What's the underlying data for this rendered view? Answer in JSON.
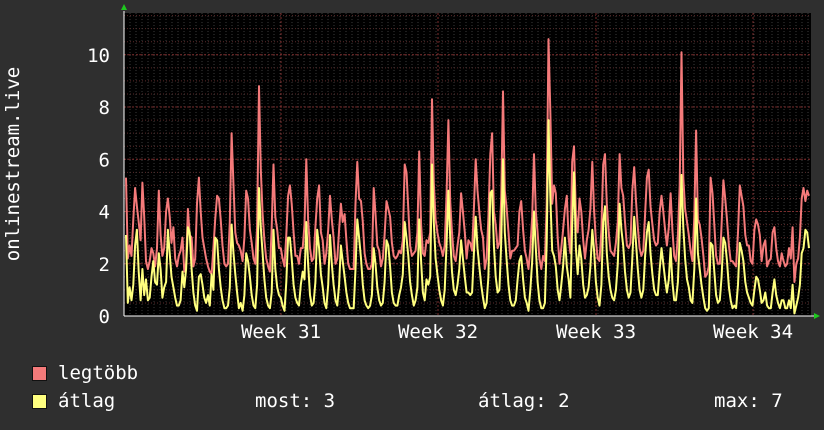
{
  "chart_data": {
    "type": "line",
    "ylabel": "onlinestream.live",
    "ylim": [
      0,
      11.6
    ],
    "y_ticks": [
      "0",
      "2",
      "4",
      "6",
      "8",
      "10"
    ],
    "x_ticks": [
      "Week 31",
      "Week 32",
      "Week 33",
      "Week 34"
    ],
    "grid": true,
    "background_color": "#000000",
    "series": [
      {
        "name": "legtöbb",
        "color": "#f47a7a",
        "values": [
          5.3,
          2.2,
          2.7,
          2.3,
          3.7,
          4.9,
          4.2,
          3.6,
          2.9,
          5.1,
          3.8,
          2.1,
          1.8,
          2.1,
          2.6,
          2.4,
          1.9,
          2.6,
          4.8,
          3.1,
          2.3,
          2.6,
          4.0,
          4.5,
          3.8,
          2.8,
          3.4,
          2.2,
          1.9,
          2.3,
          2.5,
          3.0,
          1.7,
          2.0,
          4.1,
          3.1,
          3.0,
          1.9,
          2.2,
          4.3,
          5.3,
          4.0,
          3.0,
          2.6,
          2.2,
          1.9,
          1.7,
          1.6,
          2.6,
          3.7,
          4.6,
          4.5,
          3.7,
          2.7,
          2.0,
          1.9,
          2.0,
          3.6,
          7.0,
          5.0,
          3.2,
          2.8,
          2.7,
          2.5,
          2.1,
          3.0,
          4.8,
          4.5,
          3.3,
          2.8,
          2.2,
          2.0,
          3.4,
          8.8,
          5.6,
          3.9,
          2.9,
          2.2,
          1.9,
          1.7,
          3.4,
          5.8,
          3.8,
          3.3,
          2.6,
          2.6,
          2.2,
          1.9,
          3.1,
          4.6,
          5.0,
          4.3,
          3.2,
          2.3,
          2.3,
          2.0,
          2.6,
          2.6,
          3.5,
          6.0,
          3.7,
          2.6,
          2.1,
          2.2,
          3.4,
          4.5,
          5.0,
          3.2,
          2.9,
          2.0,
          2.4,
          3.3,
          4.6,
          3.7,
          3.0,
          2.0,
          2.2,
          3.3,
          4.3,
          3.6,
          3.9,
          2.9,
          2.0,
          1.8,
          1.8,
          1.8,
          4.3,
          5.9,
          4.5,
          4.4,
          3.6,
          2.4,
          2.0,
          1.8,
          1.8,
          2.0,
          4.9,
          3.9,
          2.7,
          2.5,
          1.9,
          2.2,
          3.1,
          4.4,
          4.1,
          3.8,
          2.8,
          2.3,
          2.2,
          2.3,
          2.5,
          2.4,
          2.9,
          5.8,
          5.5,
          4.1,
          2.7,
          2.3,
          2.4,
          2.5,
          3.2,
          6.3,
          3.5,
          2.4,
          2.3,
          2.9,
          2.8,
          3.2,
          8.3,
          5.1,
          3.7,
          3.2,
          2.8,
          2.6,
          2.3,
          2.7,
          4.7,
          7.5,
          4.4,
          3.2,
          2.3,
          2.1,
          2.7,
          3.2,
          4.7,
          4.0,
          3.2,
          2.2,
          2.9,
          2.8,
          2.5,
          4.1,
          6.0,
          4.8,
          4.0,
          3.3,
          3.0,
          1.8,
          2.2,
          3.8,
          6.2,
          7.0,
          4.0,
          3.5,
          2.6,
          2.8,
          4.5,
          8.6,
          4.8,
          4.1,
          3.2,
          2.2,
          2.5,
          2.5,
          2.6,
          2.7,
          4.0,
          4.4,
          3.3,
          2.5,
          2.2,
          1.8,
          2.6,
          3.8,
          6.2,
          4.0,
          3.2,
          2.2,
          1.8,
          2.3,
          2.1,
          4.3,
          10.6,
          7.7,
          4.3,
          5.0,
          4.7,
          3.0,
          2.0,
          2.6,
          3.3,
          4.1,
          4.6,
          3.0,
          2.4,
          5.9,
          6.5,
          3.9,
          3.2,
          4.5,
          4.0,
          2.9,
          2.2,
          2.9,
          3.3,
          4.1,
          5.9,
          4.0,
          2.9,
          2.2,
          2.1,
          3.3,
          5.8,
          6.2,
          4.3,
          3.2,
          2.5,
          2.4,
          2.3,
          2.8,
          3.6,
          6.2,
          4.9,
          4.6,
          3.6,
          2.7,
          2.6,
          2.8,
          4.8,
          5.7,
          4.4,
          3.4,
          2.6,
          2.3,
          2.5,
          3.9,
          5.3,
          5.6,
          4.2,
          3.5,
          2.9,
          2.7,
          2.8,
          4.0,
          4.6,
          4.0,
          3.3,
          2.7,
          3.4,
          4.7,
          3.3,
          2.3,
          2.1,
          3.1,
          5.0,
          10.1,
          5.3,
          4.1,
          3.6,
          3.1,
          2.5,
          2.1,
          3.8,
          7.1,
          3.7,
          3.5,
          3.0,
          2.3,
          1.5,
          1.6,
          1.9,
          5.3,
          4.7,
          3.5,
          2.3,
          2.0,
          2.0,
          3.5,
          5.2,
          4.5,
          3.7,
          2.7,
          2.1,
          2.1,
          2.0,
          1.9,
          3.2,
          5.0,
          4.6,
          4.2,
          3.1,
          2.7,
          2.7,
          2.1,
          2.0,
          3.3,
          3.7,
          3.5,
          3.1,
          2.1,
          2.7,
          2.9,
          1.9,
          2.1,
          2.2,
          3.2,
          3.4,
          2.6,
          2.1,
          1.9,
          2.4,
          2.1,
          1.9,
          2.0,
          2.6,
          2.2,
          3.4,
          1.3,
          2.0,
          2.2,
          3.0,
          4.5,
          4.9,
          4.4,
          4.8,
          4.6
        ]
      },
      {
        "name": "átlag",
        "color": "#ffff7f",
        "values": [
          3.1,
          0.5,
          1.1,
          0.6,
          1.2,
          2.7,
          3.3,
          1.7,
          0.6,
          1.8,
          0.8,
          1.4,
          0.6,
          0.7,
          1.5,
          2.1,
          1.3,
          1.2,
          2.4,
          1.8,
          0.7,
          1.1,
          1.3,
          3.3,
          2.4,
          1.5,
          1.1,
          0.7,
          0.4,
          0.4,
          0.6,
          1.7,
          1.1,
          1.8,
          3.4,
          3.2,
          1.8,
          0.9,
          0.4,
          0.2,
          1.5,
          1.6,
          1.2,
          0.7,
          0.5,
          0.8,
          0.4,
          1.6,
          1.0,
          3.0,
          2.9,
          1.8,
          1.1,
          0.6,
          0.3,
          0.3,
          0.4,
          1.1,
          3.5,
          2.4,
          1.6,
          0.9,
          0.3,
          0.5,
          0.2,
          0.8,
          2.4,
          2.1,
          1.5,
          0.8,
          0.4,
          0.3,
          1.2,
          4.9,
          3.4,
          2.4,
          1.4,
          0.7,
          0.4,
          0.3,
          0.9,
          3.3,
          1.8,
          1.1,
          0.8,
          0.7,
          0.4,
          0.2,
          1.3,
          3.0,
          3.0,
          2.2,
          1.2,
          0.7,
          0.5,
          0.4,
          1.2,
          1.7,
          1.4,
          3.6,
          2.0,
          0.8,
          0.4,
          0.5,
          1.3,
          3.3,
          2.6,
          1.6,
          1.1,
          0.5,
          0.3,
          1.2,
          3.1,
          2.0,
          1.2,
          0.6,
          0.4,
          1.2,
          2.7,
          2.1,
          1.5,
          0.9,
          0.5,
          0.3,
          0.3,
          0.3,
          1.8,
          3.7,
          3.0,
          2.2,
          1.2,
          0.6,
          0.4,
          0.3,
          0.4,
          0.8,
          2.6,
          2.0,
          1.1,
          0.6,
          0.4,
          0.5,
          1.3,
          2.9,
          2.7,
          1.9,
          0.9,
          0.5,
          0.4,
          0.4,
          0.8,
          1.1,
          1.6,
          3.6,
          3.0,
          2.3,
          1.3,
          0.8,
          0.4,
          0.6,
          1.1,
          3.7,
          2.1,
          0.9,
          0.6,
          1.4,
          1.2,
          1.5,
          5.8,
          3.6,
          2.2,
          1.6,
          1.0,
          0.6,
          0.4,
          1.0,
          2.8,
          4.8,
          3.0,
          1.7,
          1.0,
          0.8,
          1.2,
          1.8,
          2.9,
          2.2,
          1.5,
          0.9,
          0.9,
          0.8,
          0.9,
          2.4,
          3.8,
          2.6,
          1.9,
          1.2,
          0.7,
          0.3,
          0.5,
          1.5,
          4.7,
          4.8,
          2.7,
          1.5,
          0.9,
          1.0,
          2.8,
          6.0,
          3.2,
          2.1,
          1.2,
          0.6,
          0.4,
          0.4,
          0.6,
          1.4,
          2.1,
          2.3,
          1.4,
          0.7,
          0.5,
          0.2,
          1.0,
          2.1,
          4.0,
          2.6,
          1.3,
          0.6,
          0.3,
          0.3,
          0.5,
          2.8,
          7.5,
          4.5,
          2.5,
          2.3,
          1.9,
          1.0,
          0.6,
          1.2,
          1.9,
          3.0,
          1.9,
          1.4,
          0.7,
          3.5,
          5.5,
          2.6,
          1.6,
          2.7,
          2.2,
          1.2,
          0.7,
          0.8,
          1.1,
          1.9,
          3.3,
          2.5,
          1.3,
          0.7,
          0.4,
          1.2,
          3.6,
          4.2,
          2.4,
          1.5,
          1.0,
          0.7,
          0.6,
          1.0,
          2.0,
          4.3,
          3.3,
          2.7,
          1.7,
          1.0,
          0.7,
          0.9,
          2.2,
          3.8,
          2.8,
          1.8,
          1.0,
          0.7,
          1.0,
          2.3,
          3.2,
          3.6,
          2.4,
          1.6,
          1.0,
          0.8,
          0.8,
          1.8,
          2.6,
          2.0,
          1.4,
          0.9,
          1.4,
          2.6,
          1.3,
          0.6,
          0.6,
          1.3,
          3.1,
          5.4,
          3.4,
          2.2,
          1.4,
          1.1,
          0.6,
          0.5,
          1.8,
          4.5,
          2.4,
          1.8,
          1.2,
          0.7,
          0.3,
          0.2,
          0.3,
          2.8,
          2.7,
          1.7,
          0.8,
          0.5,
          0.6,
          1.5,
          3.0,
          2.8,
          2.1,
          1.1,
          0.6,
          0.3,
          0.4,
          0.3,
          1.2,
          2.8,
          2.5,
          2.1,
          1.3,
          0.9,
          0.7,
          0.5,
          0.4,
          1.0,
          1.5,
          1.4,
          1.0,
          0.5,
          0.6,
          0.9,
          0.4,
          0.3,
          0.3,
          0.9,
          1.4,
          0.8,
          0.5,
          0.3,
          0.6,
          0.6,
          0.3,
          0.3,
          0.6,
          0.3,
          1.2,
          0.1,
          0.4,
          0.7,
          1.2,
          2.4,
          2.6,
          3.3,
          3.2,
          2.6
        ]
      }
    ]
  },
  "legend": {
    "max_label": "legtöbb",
    "avg_label": "átlag",
    "max_color": "#f47a7a",
    "avg_color": "#ffff7f"
  },
  "stats": {
    "now": "most: 3",
    "avg": "átlag: 2",
    "max": "max: 7"
  }
}
